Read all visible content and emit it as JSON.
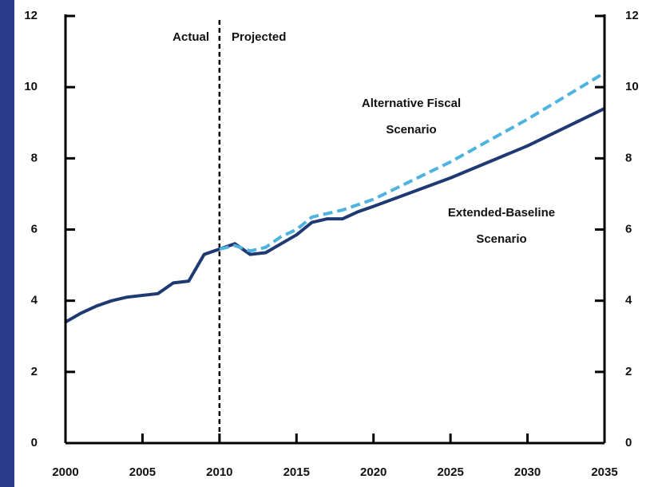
{
  "chart_data": {
    "type": "line",
    "x": [
      2000,
      2001,
      2002,
      2003,
      2004,
      2005,
      2006,
      2007,
      2008,
      2009,
      2010,
      2011,
      2012,
      2013,
      2014,
      2015,
      2016,
      2017,
      2018,
      2019,
      2020,
      2025,
      2030,
      2035
    ],
    "series": [
      {
        "name": "Extended-Baseline Scenario",
        "color": "#1f3a73",
        "style": "solid",
        "values": [
          3.4,
          3.65,
          3.85,
          4.0,
          4.1,
          4.15,
          4.2,
          4.5,
          4.55,
          5.3,
          5.45,
          5.6,
          5.3,
          5.35,
          5.6,
          5.85,
          6.2,
          6.3,
          6.3,
          6.5,
          6.65,
          7.45,
          8.35,
          9.4
        ]
      },
      {
        "name": "Alternative Fiscal Scenario",
        "color": "#4fb3e0",
        "style": "dashed",
        "values": [
          null,
          null,
          null,
          null,
          null,
          null,
          null,
          null,
          null,
          null,
          5.45,
          5.55,
          5.4,
          5.5,
          5.8,
          6.0,
          6.35,
          6.45,
          6.55,
          6.7,
          6.85,
          7.9,
          9.1,
          10.4
        ]
      }
    ],
    "annotations": [
      {
        "lines": [
          "Actual"
        ]
      },
      {
        "lines": [
          "Projected"
        ]
      },
      {
        "lines": [
          "Alternative Fiscal",
          "Scenario"
        ]
      },
      {
        "lines": [
          "Extended-Baseline",
          "Scenario"
        ]
      }
    ],
    "divider": 2010,
    "xlim": [
      2000,
      2035
    ],
    "xticks": [
      2000,
      2005,
      2010,
      2015,
      2020,
      2025,
      2030,
      2035
    ],
    "ylim": [
      0,
      12
    ],
    "yticks": [
      0,
      2,
      4,
      6,
      8,
      10,
      12
    ],
    "y2lim": [
      0,
      12
    ],
    "y2ticks": [
      0,
      2,
      4,
      6,
      8,
      10,
      12
    ]
  }
}
